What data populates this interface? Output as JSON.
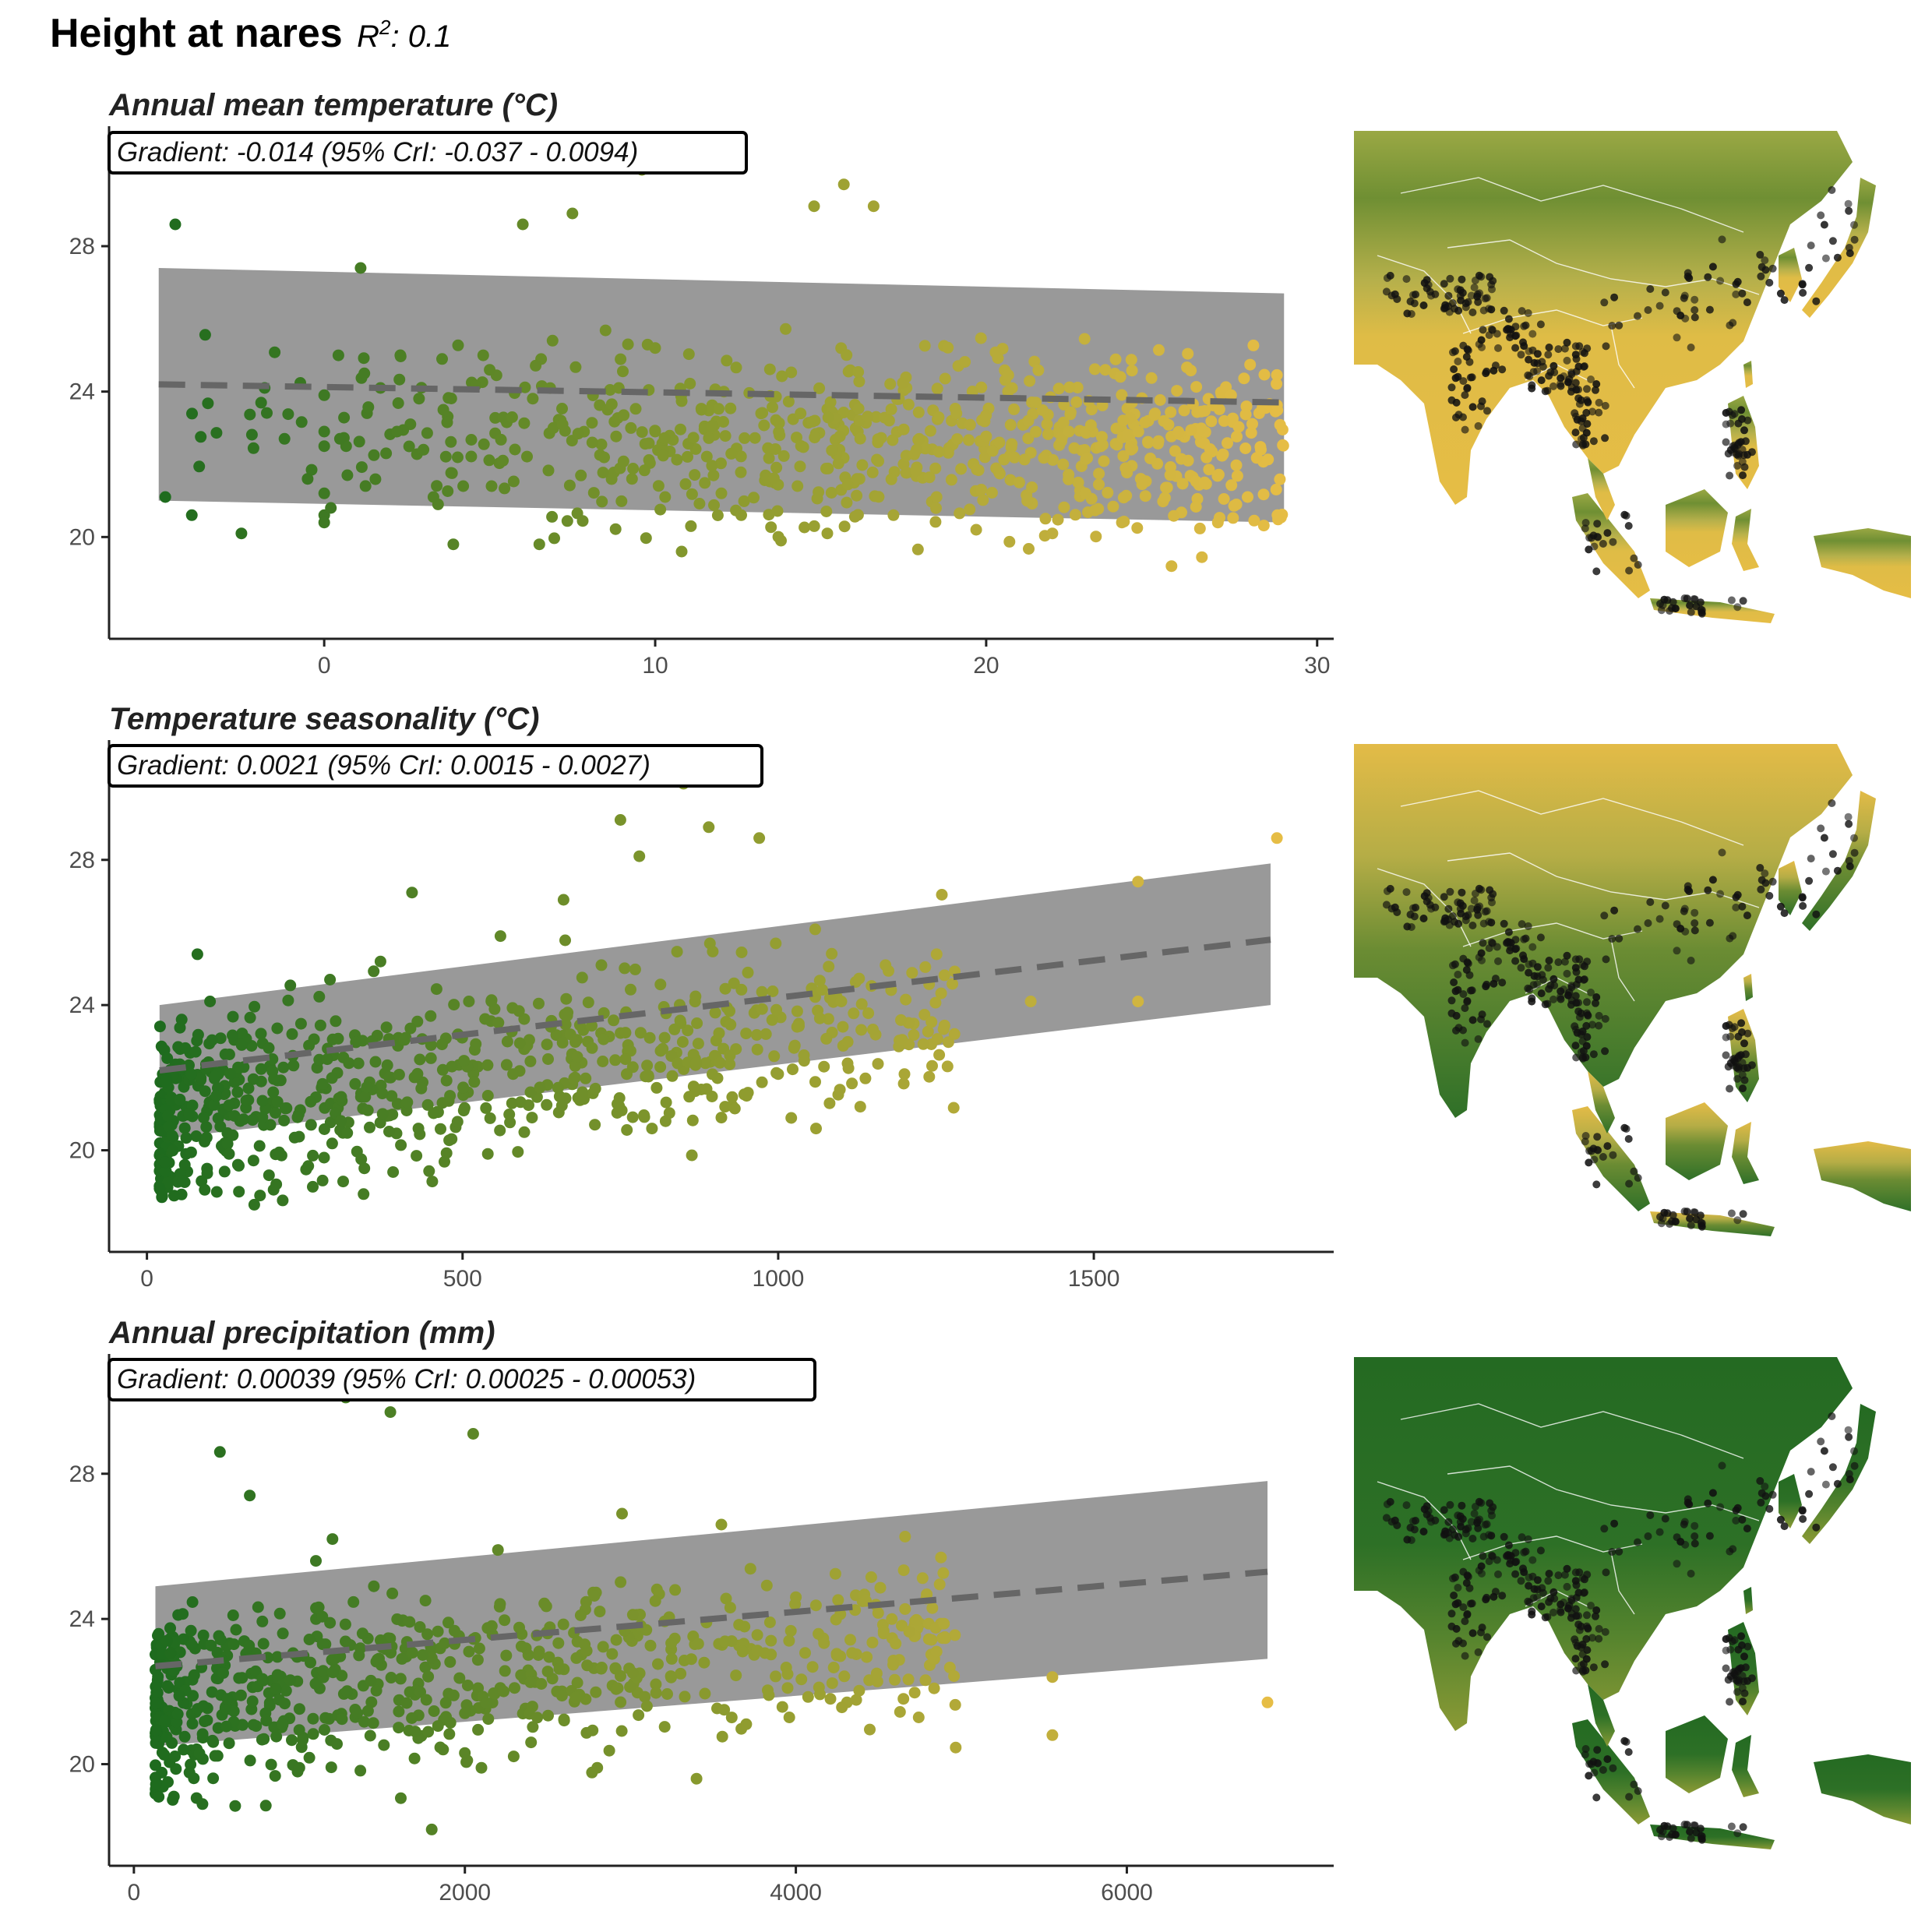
{
  "figure": {
    "title": "Height at nares",
    "r2_prefix": "R",
    "r2_sup": "2",
    "r2_value": ": 0.1"
  },
  "colors": {
    "low": "#1e6b1e",
    "mid": "#8a9a2e",
    "high": "#e6bd45",
    "ribbon": "#999999",
    "trend_line": "#666666",
    "axis": "#222222",
    "map_points": "#111111"
  },
  "chart_data": [
    {
      "type": "scatter",
      "title": "Annual mean temperature (°C)",
      "gradient_label": "Gradient: -0.014 (95% CrI: -0.037 - 0.0094)",
      "xlim": [
        -6.5,
        30.5
      ],
      "ylim": [
        17.2,
        31.3
      ],
      "x_ticks": [
        0,
        10,
        20,
        30
      ],
      "y_ticks": [
        20,
        24,
        28
      ],
      "color_by_x": true,
      "fit": {
        "x": [
          -5,
          29
        ],
        "y": [
          24.2,
          23.7
        ],
        "lower": [
          21.0,
          20.4
        ],
        "upper": [
          27.4,
          26.7
        ]
      },
      "points_sample": {
        "x": [
          -4.8,
          -4.5,
          -4.0,
          -2.5,
          -1.8,
          -1.2,
          -0.5,
          0,
          0,
          0,
          0,
          0,
          0,
          0.2,
          0.7,
          1.1,
          1.7,
          2.2,
          2.3,
          3.0,
          3.3,
          3.6,
          3.9,
          4.2,
          5.0,
          5.4,
          6.0,
          6.5,
          6.9,
          7.2,
          7.5,
          8.1,
          8.6,
          8.9,
          9.3,
          9.6,
          10.0,
          10.0,
          10.3,
          10.8,
          11.4,
          12.0,
          12.6,
          13.2,
          13.8,
          14.3,
          14.8,
          15.2,
          15.7,
          16.1,
          16.6,
          17.2,
          17.9,
          18.5,
          19.1,
          19.7,
          20.4,
          21.0,
          21.5,
          22.0,
          22.5,
          23.0,
          23.6,
          24.1,
          24.6,
          25.1,
          25.6,
          26.1,
          26.6,
          27.0,
          27.4,
          27.9,
          28.3,
          28.8
        ],
        "y": [
          21.1,
          28.6,
          20.6,
          20.1,
          24.1,
          22.7,
          21.6,
          23.9,
          22.5,
          21.2,
          20.6,
          22.9,
          20.4,
          20.8,
          21.7,
          27.4,
          24.1,
          22.9,
          25.0,
          22.4,
          21.1,
          23.5,
          19.8,
          21.4,
          24.6,
          22.1,
          28.6,
          19.8,
          25.4,
          23.1,
          28.9,
          22.6,
          30.4,
          24.1,
          21.6,
          30.1,
          22.9,
          25.2,
          21.1,
          19.6,
          23.5,
          21.2,
          20.6,
          23.4,
          19.9,
          21.4,
          29.1,
          20.1,
          29.7,
          21.6,
          29.1,
          20.6,
          22.4,
          21.1,
          23.4,
          20.2,
          22.6,
          21.5,
          23.7,
          20.1,
          22.9,
          21.2,
          24.6,
          20.4,
          22.9,
          23.4,
          19.2,
          22.1,
          21.5,
          20.4,
          23.9,
          21.1,
          22.4,
          20.6
        ]
      }
    },
    {
      "type": "scatter",
      "title": "Temperature seasonality (°C)",
      "gradient_label": "Gradient: 0.0021 (95% CrI: 0.0015 - 0.0027)",
      "xlim": [
        -60,
        1880
      ],
      "ylim": [
        17.2,
        31.3
      ],
      "x_ticks": [
        0,
        500,
        1000,
        1500
      ],
      "y_ticks": [
        20,
        24,
        28
      ],
      "color_by_x": true,
      "fit": {
        "x": [
          20,
          1780
        ],
        "y": [
          22.2,
          25.8
        ],
        "lower": [
          20.3,
          24.0
        ],
        "upper": [
          24.0,
          27.9
        ]
      },
      "points_sample": {
        "x": [
          30,
          40,
          55,
          60,
          70,
          80,
          90,
          100,
          110,
          130,
          150,
          170,
          200,
          230,
          260,
          290,
          320,
          350,
          370,
          390,
          410,
          420,
          430,
          450,
          480,
          510,
          540,
          560,
          580,
          610,
          640,
          660,
          690,
          720,
          750,
          760,
          780,
          800,
          820,
          850,
          870,
          890,
          910,
          930,
          950,
          970,
          1000,
          1030,
          1060,
          1100,
          1130,
          1170,
          1200,
          1400,
          1570,
          1570,
          1790
        ],
        "y": [
          21.9,
          20.4,
          23.6,
          19.6,
          22.1,
          25.4,
          20.9,
          24.1,
          21.5,
          19.9,
          22.9,
          18.5,
          21.6,
          23.2,
          20.7,
          24.7,
          22.4,
          21.1,
          25.2,
          19.4,
          23.1,
          27.1,
          20.6,
          22.9,
          21.5,
          24.1,
          19.9,
          25.9,
          22.1,
          20.9,
          23.4,
          26.9,
          21.6,
          25.1,
          29.1,
          22.1,
          28.1,
          20.6,
          23.1,
          30.1,
          22.4,
          28.9,
          20.9,
          24.6,
          21.5,
          28.6,
          22.1,
          23.4,
          20.6,
          24.1,
          21.2,
          25.1,
          22.1,
          24.1,
          27.4,
          24.1,
          28.6
        ]
      }
    },
    {
      "type": "scatter",
      "title": "Annual precipitation (mm)",
      "gradient_label": "Gradient: 0.00039 (95% CrI: 0.00025 - 0.00053)",
      "xlim": [
        -150,
        7250
      ],
      "ylim": [
        17.2,
        31.3
      ],
      "x_ticks": [
        0,
        2000,
        4000,
        6000
      ],
      "y_ticks": [
        20,
        24,
        28
      ],
      "color_by_x": true,
      "fit": {
        "x": [
          130,
          6850
        ],
        "y": [
          22.7,
          25.3
        ],
        "lower": [
          20.5,
          22.9
        ],
        "upper": [
          24.9,
          27.8
        ]
      },
      "points_sample": {
        "x": [
          130,
          150,
          200,
          300,
          420,
          520,
          600,
          700,
          800,
          900,
          1000,
          1100,
          1150,
          1200,
          1280,
          1350,
          1450,
          1550,
          1620,
          1700,
          1800,
          1900,
          2000,
          2050,
          2100,
          2200,
          2300,
          2400,
          2500,
          2600,
          2700,
          2800,
          2950,
          3100,
          3250,
          3400,
          3550,
          3700,
          3850,
          3950,
          4000,
          4650,
          4850,
          4900,
          5550,
          5550,
          6850
        ],
        "y": [
          22.6,
          19.1,
          23.4,
          20.4,
          21.6,
          28.6,
          24.1,
          27.4,
          21.2,
          23.6,
          19.9,
          25.6,
          30.6,
          26.2,
          30.1,
          21.4,
          24.9,
          29.7,
          22.9,
          20.9,
          18.2,
          23.9,
          21.4,
          29.1,
          19.9,
          25.9,
          22.1,
          20.6,
          23.6,
          21.2,
          24.1,
          19.9,
          26.9,
          21.6,
          22.9,
          19.6,
          26.6,
          21.1,
          23.4,
          22.1,
          24.6,
          21.8,
          23.1,
          23.5,
          22.4,
          20.8,
          21.7
        ]
      }
    }
  ],
  "maps": [
    {
      "variable": "Annual mean temperature",
      "palette": "temperature"
    },
    {
      "variable": "Temperature seasonality",
      "palette": "seasonality"
    },
    {
      "variable": "Annual precipitation",
      "palette": "precipitation"
    }
  ]
}
